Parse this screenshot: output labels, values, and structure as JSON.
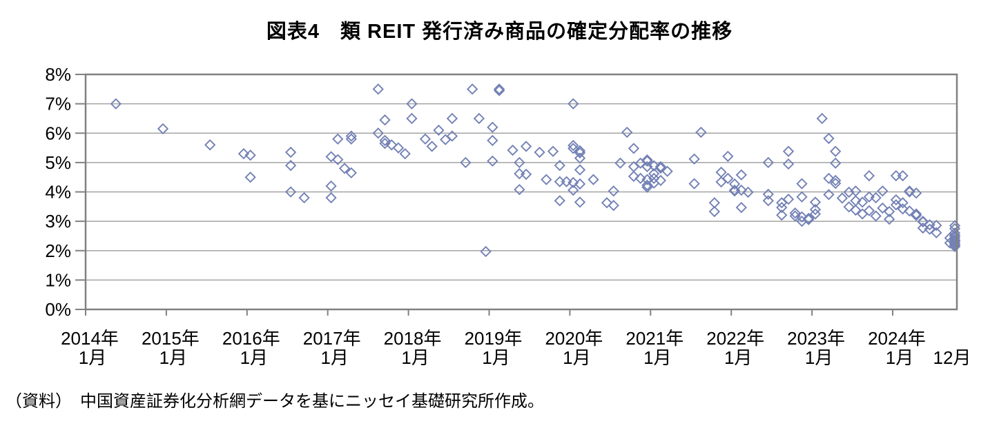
{
  "title": "図表4　類 REIT 発行済み商品の確定分配率の推移",
  "source_note": "（資料）　中国資産証券化分析網データを基にニッセイ基礎研究所作成。",
  "colors": {
    "marker": "#7381b5",
    "gridline": "#a3a3a3",
    "axis_border": "#808080",
    "text": "#000000"
  },
  "chart_data": {
    "type": "scatter",
    "title": "図表4　類 REIT 発行済み商品の確定分配率の推移",
    "xlabel": "",
    "ylabel": "",
    "ylim": [
      0,
      8
    ],
    "grid": true,
    "legend": "none",
    "marker": {
      "shape": "open-diamond",
      "color": "#7381b5"
    },
    "ytick_labels": [
      "0%",
      "1%",
      "2%",
      "3%",
      "4%",
      "5%",
      "6%",
      "7%",
      "8%"
    ],
    "xtick_years": [
      "2014年",
      "2015年",
      "2016年",
      "2017年",
      "2018年",
      "2019年",
      "2020年",
      "2021年",
      "2022年",
      "2023年",
      "2024年"
    ],
    "xtick_month_label": "1月",
    "x_end_label": "12月",
    "x_unit": "months_since_2014_01",
    "points": [
      [
        4,
        7.0
      ],
      [
        11,
        6.15
      ],
      [
        18,
        5.6
      ],
      [
        23,
        5.3
      ],
      [
        24,
        5.25
      ],
      [
        24,
        4.5
      ],
      [
        30,
        5.35
      ],
      [
        30,
        4.9
      ],
      [
        30,
        4.0
      ],
      [
        32,
        3.8
      ],
      [
        36,
        3.8
      ],
      [
        36,
        4.2
      ],
      [
        36,
        5.2
      ],
      [
        37,
        5.1
      ],
      [
        37,
        5.8
      ],
      [
        38,
        4.8
      ],
      [
        39,
        5.9
      ],
      [
        39,
        5.8
      ],
      [
        39,
        4.65
      ],
      [
        43,
        7.5
      ],
      [
        43,
        6.0
      ],
      [
        44,
        6.45
      ],
      [
        44,
        5.75
      ],
      [
        44,
        5.65
      ],
      [
        45,
        5.6
      ],
      [
        46,
        5.5
      ],
      [
        47,
        5.3
      ],
      [
        48,
        7.0
      ],
      [
        48,
        6.5
      ],
      [
        50,
        5.8
      ],
      [
        51,
        5.55
      ],
      [
        52,
        6.1
      ],
      [
        53,
        5.78
      ],
      [
        54,
        5.9
      ],
      [
        54,
        6.5
      ],
      [
        56,
        5.0
      ],
      [
        57,
        7.5
      ],
      [
        58,
        6.5
      ],
      [
        59,
        1.97
      ],
      [
        60,
        6.2
      ],
      [
        60,
        5.75
      ],
      [
        60,
        5.05
      ],
      [
        61,
        7.5
      ],
      [
        61,
        7.45
      ],
      [
        63,
        5.42
      ],
      [
        64,
        5.0
      ],
      [
        64,
        4.62
      ],
      [
        64,
        4.08
      ],
      [
        65,
        5.55
      ],
      [
        65,
        4.6
      ],
      [
        67,
        5.35
      ],
      [
        68,
        4.42
      ],
      [
        69,
        5.38
      ],
      [
        70,
        4.9
      ],
      [
        70,
        4.35
      ],
      [
        70,
        3.7
      ],
      [
        71,
        4.35
      ],
      [
        72,
        7.0
      ],
      [
        72,
        5.58
      ],
      [
        72,
        5.48
      ],
      [
        72,
        4.32
      ],
      [
        72,
        4.06
      ],
      [
        73,
        5.4
      ],
      [
        73,
        5.33
      ],
      [
        73,
        5.15
      ],
      [
        73,
        4.75
      ],
      [
        73,
        4.27
      ],
      [
        73,
        3.65
      ],
      [
        75,
        4.42
      ],
      [
        77,
        3.63
      ],
      [
        78,
        4.03
      ],
      [
        78,
        3.54
      ],
      [
        79,
        4.98
      ],
      [
        80,
        6.03
      ],
      [
        81,
        5.48
      ],
      [
        81,
        4.86
      ],
      [
        81,
        4.53
      ],
      [
        82,
        4.98
      ],
      [
        82,
        4.46
      ],
      [
        83,
        5.05
      ],
      [
        83,
        5.09
      ],
      [
        83,
        4.86
      ],
      [
        83,
        4.42
      ],
      [
        83,
        4.23
      ],
      [
        83,
        4.16
      ],
      [
        84,
        4.89
      ],
      [
        84,
        4.46
      ],
      [
        84,
        4.62
      ],
      [
        84,
        4.3
      ],
      [
        85,
        4.81
      ],
      [
        85,
        4.86
      ],
      [
        85,
        4.39
      ],
      [
        86,
        4.7
      ],
      [
        90,
        5.12
      ],
      [
        90,
        4.28
      ],
      [
        91,
        6.03
      ],
      [
        93,
        3.63
      ],
      [
        93,
        3.33
      ],
      [
        94,
        4.67
      ],
      [
        94,
        4.34
      ],
      [
        95,
        5.21
      ],
      [
        95,
        4.46
      ],
      [
        96,
        4.27
      ],
      [
        96,
        4.06
      ],
      [
        96,
        4.03
      ],
      [
        97,
        4.58
      ],
      [
        97,
        4.06
      ],
      [
        97,
        3.47
      ],
      [
        98,
        3.99
      ],
      [
        101,
        5.0
      ],
      [
        101,
        3.92
      ],
      [
        101,
        3.7
      ],
      [
        103,
        3.63
      ],
      [
        103,
        3.47
      ],
      [
        103,
        3.21
      ],
      [
        104,
        5.38
      ],
      [
        104,
        4.95
      ],
      [
        104,
        3.75
      ],
      [
        105,
        3.28
      ],
      [
        105,
        3.18
      ],
      [
        106,
        4.28
      ],
      [
        106,
        3.83
      ],
      [
        106,
        3.15
      ],
      [
        106,
        3.0
      ],
      [
        107,
        3.1
      ],
      [
        107,
        3.06
      ],
      [
        108,
        3.25
      ],
      [
        108,
        3.4
      ],
      [
        108,
        3.65
      ],
      [
        109,
        6.5
      ],
      [
        110,
        5.82
      ],
      [
        110,
        4.46
      ],
      [
        110,
        3.91
      ],
      [
        111,
        5.38
      ],
      [
        111,
        4.98
      ],
      [
        111,
        4.39
      ],
      [
        111,
        4.29
      ],
      [
        112,
        3.79
      ],
      [
        113,
        3.99
      ],
      [
        113,
        3.49
      ],
      [
        114,
        4.03
      ],
      [
        114,
        3.7
      ],
      [
        114,
        3.38
      ],
      [
        115,
        3.65
      ],
      [
        115,
        3.25
      ],
      [
        116,
        4.55
      ],
      [
        116,
        3.83
      ],
      [
        116,
        3.36
      ],
      [
        117,
        3.8
      ],
      [
        117,
        3.18
      ],
      [
        118,
        4.03
      ],
      [
        118,
        3.45
      ],
      [
        119,
        3.33
      ],
      [
        119,
        3.07
      ],
      [
        120,
        4.55
      ],
      [
        120,
        3.73
      ],
      [
        120,
        3.56
      ],
      [
        121,
        4.55
      ],
      [
        121,
        3.63
      ],
      [
        121,
        3.42
      ],
      [
        122,
        4.03
      ],
      [
        122,
        4.0
      ],
      [
        122,
        3.35
      ],
      [
        123,
        3.96
      ],
      [
        123,
        3.25
      ],
      [
        123,
        3.2
      ],
      [
        124,
        3.0
      ],
      [
        124,
        2.98
      ],
      [
        124,
        2.77
      ],
      [
        125,
        2.88
      ],
      [
        125,
        2.73
      ],
      [
        126,
        2.86
      ],
      [
        126,
        2.61
      ],
      [
        128,
        2.43
      ],
      [
        128,
        2.26
      ],
      [
        129,
        2.36
      ],
      [
        129,
        2.33
      ],
      [
        129,
        2.14
      ],
      [
        130,
        2.85
      ],
      [
        130,
        2.52
      ],
      [
        130,
        2.28
      ],
      [
        130,
        2.18
      ],
      [
        130,
        2.14
      ],
      [
        131,
        2.75
      ],
      [
        131,
        2.6
      ],
      [
        131,
        2.5
      ],
      [
        131,
        2.43
      ],
      [
        131,
        2.22
      ]
    ]
  }
}
